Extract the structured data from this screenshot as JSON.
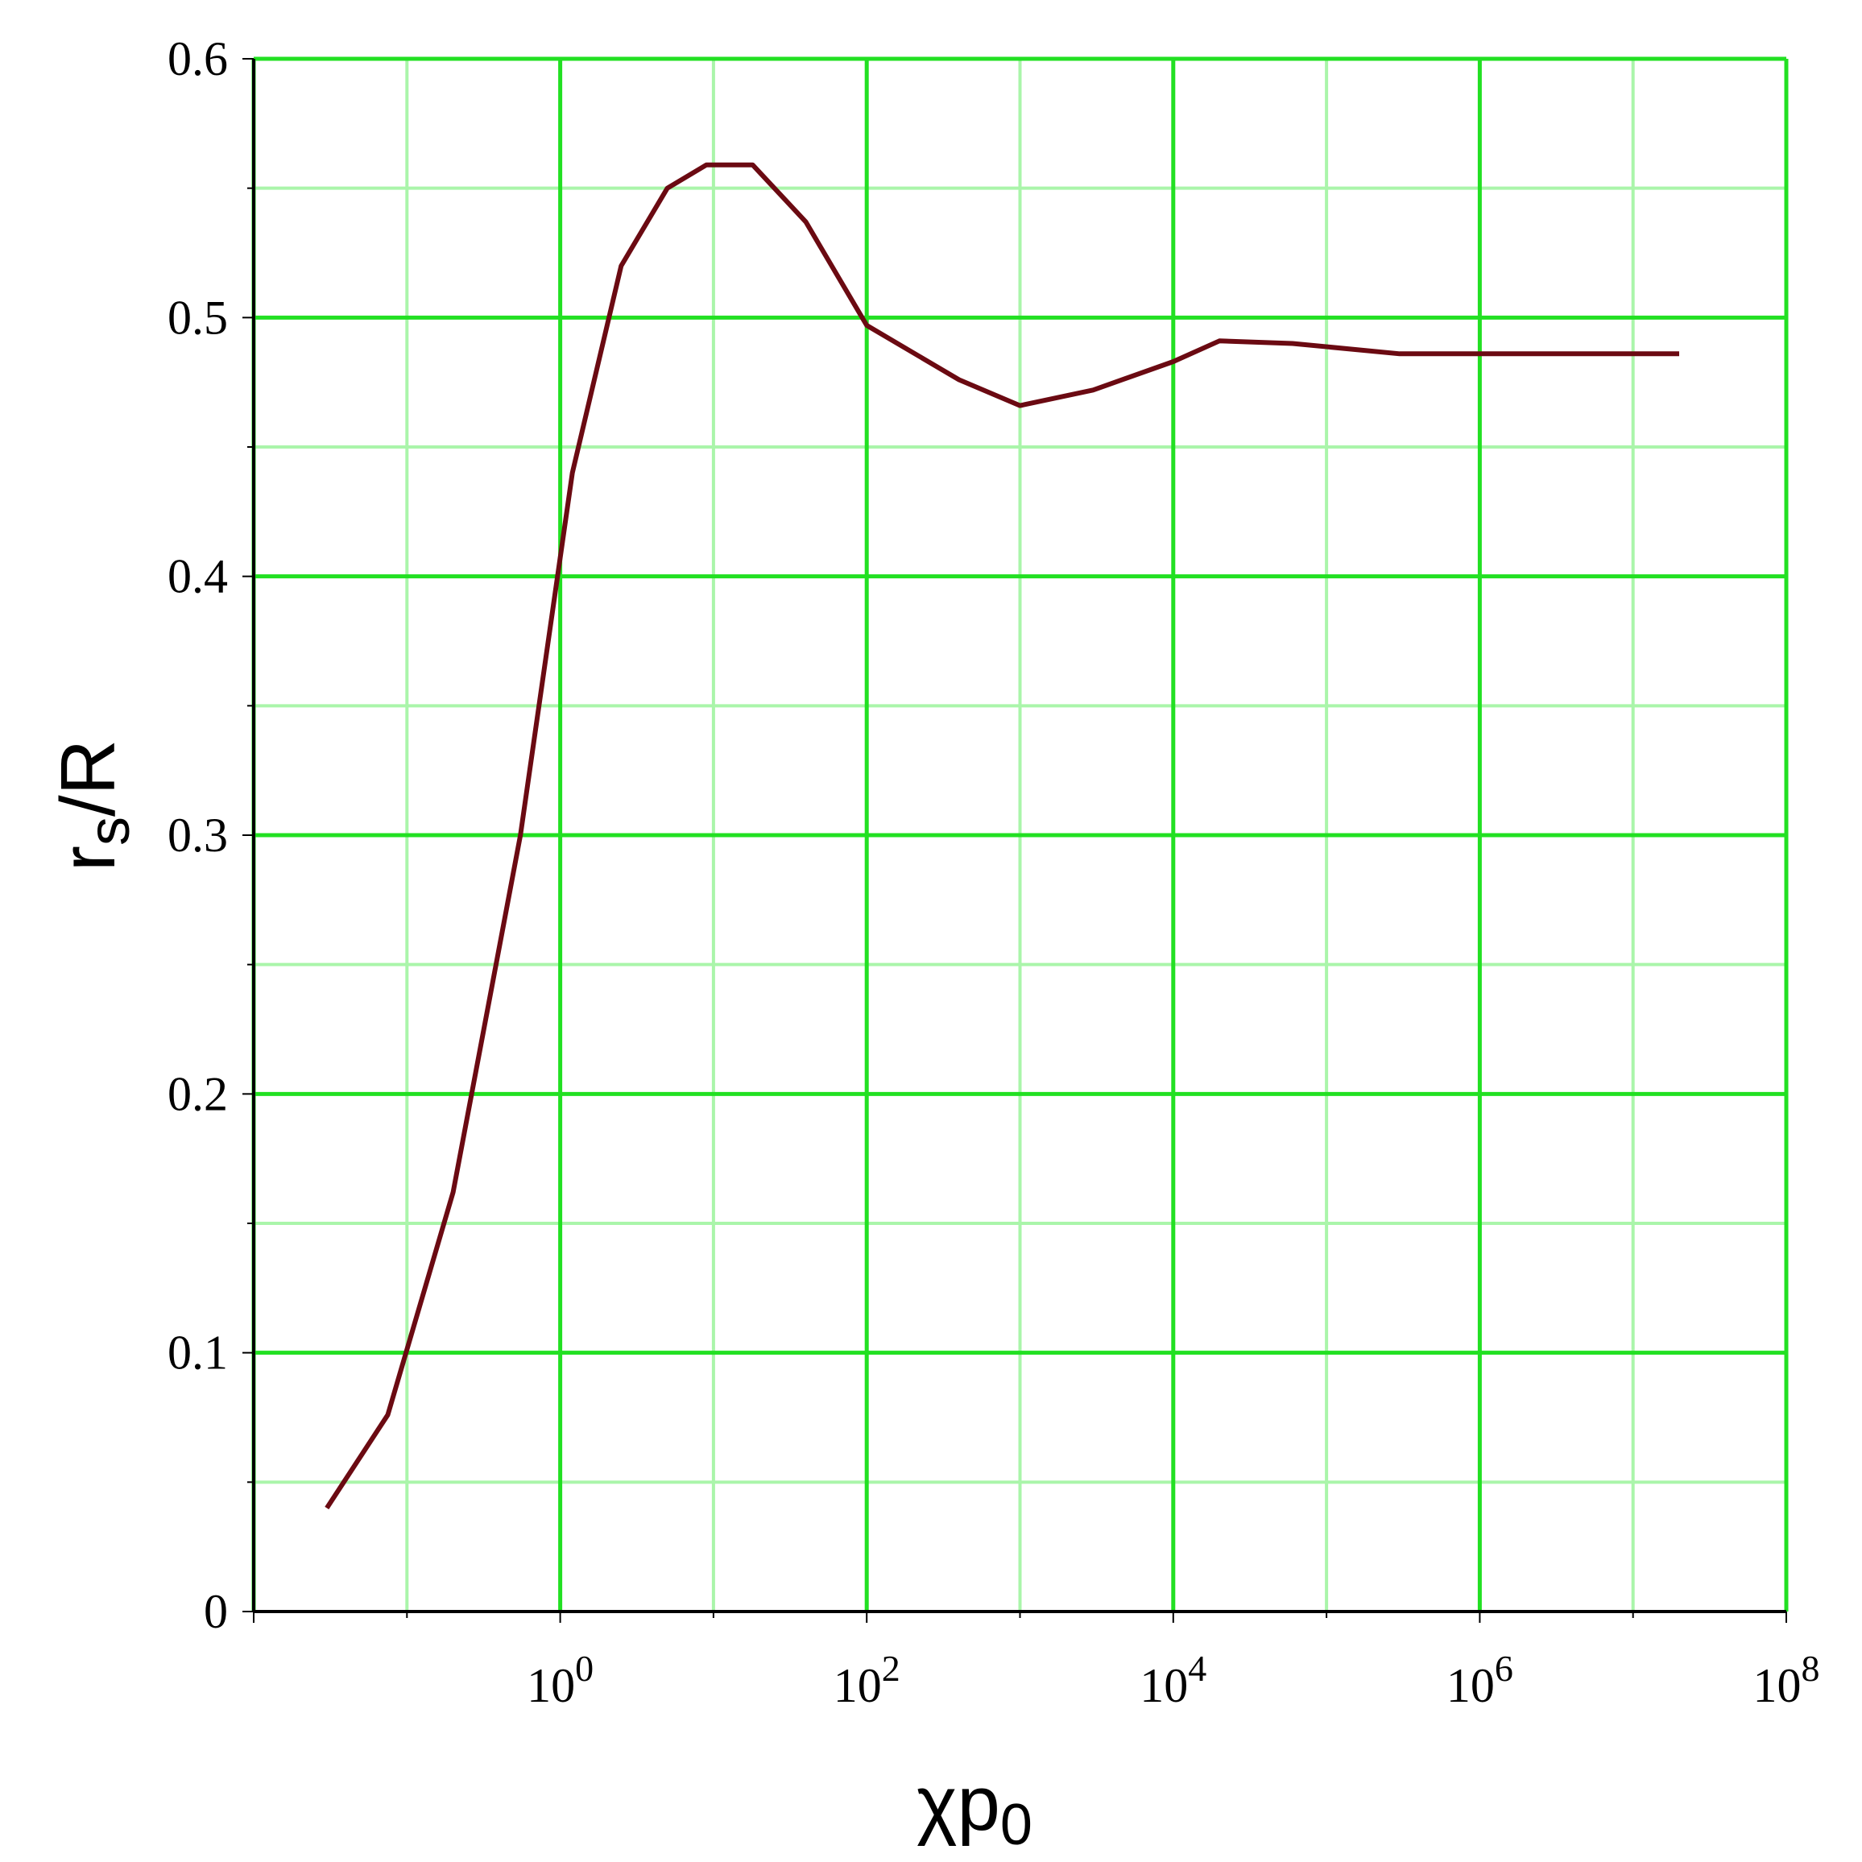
{
  "chart_data": {
    "type": "line",
    "title": "",
    "xlabel": {
      "base": "χp",
      "sub": "0"
    },
    "ylabel": {
      "base": "r",
      "sub": "s",
      "rest": "/R"
    },
    "xscale": "log10",
    "xlim": [
      0.01,
      100000000
    ],
    "ylim": [
      0,
      0.6
    ],
    "grid": true,
    "x_major_ticks": [
      {
        "mantissa": "10",
        "exp": "0"
      },
      {
        "mantissa": "10",
        "exp": "2"
      },
      {
        "mantissa": "10",
        "exp": "4"
      },
      {
        "mantissa": "10",
        "exp": "6"
      },
      {
        "mantissa": "10",
        "exp": "8"
      }
    ],
    "y_ticks": [
      "0",
      "0.1",
      "0.2",
      "0.3",
      "0.4",
      "0.5",
      "0.6"
    ],
    "colors": {
      "line": "#6b0a12",
      "grid_major": "#22e022",
      "grid_minor": "#aaf5aa",
      "axis": "#000000"
    },
    "series": [
      {
        "x": [
          0.03,
          0.075,
          0.2,
          0.55,
          1.2,
          2.5,
          5,
          9,
          18,
          40,
          100,
          400,
          1000,
          3000,
          10000,
          20000,
          60000,
          300000,
          1000000,
          20000000
        ],
        "y": [
          0.04,
          0.076,
          0.162,
          0.3,
          0.44,
          0.52,
          0.55,
          0.559,
          0.559,
          0.537,
          0.497,
          0.476,
          0.466,
          0.472,
          0.483,
          0.491,
          0.49,
          0.486,
          0.486,
          0.486
        ]
      }
    ]
  }
}
